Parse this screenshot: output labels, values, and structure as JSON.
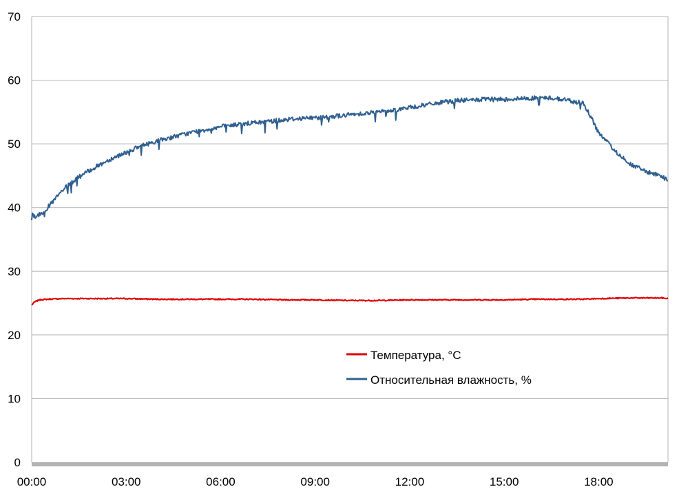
{
  "chart_data": {
    "type": "line",
    "title": "",
    "xlabel": "",
    "ylabel": "",
    "ylim": [
      0,
      70
    ],
    "yticks": [
      0,
      10,
      20,
      30,
      40,
      50,
      60,
      70
    ],
    "ytick_labels": [
      "0",
      "10",
      "20",
      "30",
      "40",
      "50",
      "60",
      "70"
    ],
    "xlim_hours": [
      0,
      20.2
    ],
    "xticks_hours": [
      0,
      3,
      6,
      9,
      12,
      15,
      18
    ],
    "xtick_labels": [
      "00:00",
      "03:00",
      "06:00",
      "09:00",
      "12:00",
      "15:00",
      "18:00"
    ],
    "grid": true,
    "legend_position": "center-right",
    "series": [
      {
        "name": "Температура, °C",
        "color": "#e00000",
        "x_hours": [
          0,
          0.1,
          0.25,
          0.5,
          1,
          2,
          3,
          4,
          5,
          6,
          7,
          8,
          9,
          10,
          10.5,
          11,
          12,
          13,
          14,
          15,
          16,
          17,
          17.5,
          18,
          19,
          20,
          20.2
        ],
        "values": [
          24.7,
          25.2,
          25.5,
          25.6,
          25.7,
          25.7,
          25.7,
          25.6,
          25.6,
          25.6,
          25.6,
          25.5,
          25.5,
          25.4,
          25.4,
          25.4,
          25.5,
          25.5,
          25.5,
          25.5,
          25.6,
          25.6,
          25.6,
          25.7,
          25.8,
          25.8,
          25.7
        ]
      },
      {
        "name": "Относительная влажность, %",
        "color": "#2f5f8f",
        "x_hours": [
          0,
          0.1,
          0.3,
          0.6,
          1,
          1.5,
          2,
          2.5,
          3,
          3.5,
          4,
          4.5,
          5,
          5.5,
          6,
          6.5,
          7,
          7.5,
          8,
          8.5,
          9,
          9.5,
          10,
          10.5,
          11,
          11.5,
          12,
          12.5,
          13,
          13.5,
          14,
          14.5,
          15,
          15.5,
          16,
          16.5,
          17,
          17.2,
          17.5,
          17.8,
          18,
          18.5,
          19,
          19.5,
          20,
          20.2
        ],
        "values": [
          39.0,
          38.6,
          39.0,
          40.5,
          42.8,
          44.8,
          46.3,
          47.6,
          48.7,
          49.7,
          50.5,
          51.1,
          51.7,
          52.2,
          52.7,
          53.0,
          53.3,
          53.5,
          53.8,
          54.0,
          54.1,
          54.3,
          54.5,
          54.8,
          55.0,
          55.3,
          55.7,
          56.1,
          56.5,
          56.8,
          56.9,
          57.0,
          57.0,
          57.1,
          57.2,
          57.2,
          56.9,
          56.6,
          56.5,
          53.8,
          51.7,
          49.0,
          46.8,
          45.7,
          44.8,
          44.3
        ]
      }
    ]
  }
}
